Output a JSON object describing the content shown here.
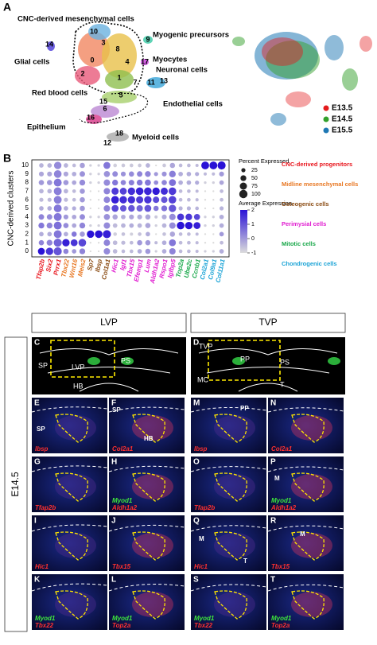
{
  "figure_a": {
    "letter": "A",
    "cell_types": [
      "CNC-derived mesenchymal cells",
      "Glial cells",
      "Myogenic precursors",
      "Myocytes",
      "Neuronal cells",
      "Red blood cells",
      "Endothelial cells",
      "Epithelium",
      "Myeloid cells"
    ],
    "clusters": [
      "0",
      "1",
      "2",
      "3",
      "4",
      "5",
      "6",
      "7",
      "8",
      "9",
      "10",
      "11",
      "12",
      "13",
      "14",
      "15",
      "16",
      "17",
      "18"
    ],
    "legend": [
      {
        "name": "E13.5",
        "color": "#e41a1c"
      },
      {
        "name": "E14.5",
        "color": "#33a02c"
      },
      {
        "name": "E15.5",
        "color": "#1f78b4"
      }
    ]
  },
  "dot_plot": {
    "type": "dot",
    "letter": "B",
    "y_label": "CNC-derived clusters",
    "clusters": [
      0,
      1,
      2,
      3,
      4,
      5,
      6,
      7,
      8,
      9,
      10
    ],
    "groups": [
      {
        "name": "CNC-derived progenitors",
        "color": "#e8141c",
        "genes": [
          "Tfap2b",
          "Six2",
          "Prrx1"
        ]
      },
      {
        "name": "Midline mesenchymal cells",
        "color": "#e87722",
        "genes": [
          "Tbx22",
          "Wnt16",
          "Meis2"
        ]
      },
      {
        "name": "Osteogenic cells",
        "color": "#8a4b12",
        "genes": [
          "Sp7",
          "Ibsp",
          "Col1a1"
        ]
      },
      {
        "name": "Perimysial cells",
        "color": "#e01bd0",
        "genes": [
          "Hic1",
          "Igf1",
          "Tbx15",
          "Efemp1",
          "Lum",
          "Aldh1a2",
          "Rspo1",
          "Igfbp5"
        ]
      },
      {
        "name": "Mitotic cells",
        "color": "#19a84a",
        "genes": [
          "Top2a",
          "Ube2c",
          "Ccnb1"
        ]
      },
      {
        "name": "Chondrogenic cells",
        "color": "#1aa3d6",
        "genes": [
          "Col2a1",
          "Col9a1",
          "Col11a1"
        ]
      }
    ],
    "percent": [
      [
        70,
        80,
        95,
        40,
        30,
        50,
        5,
        5,
        60,
        30,
        20,
        20,
        30,
        40,
        10,
        30,
        60,
        20,
        20,
        15,
        10,
        10,
        30
      ],
      [
        40,
        50,
        95,
        80,
        70,
        85,
        5,
        5,
        60,
        30,
        25,
        20,
        40,
        40,
        15,
        30,
        70,
        20,
        20,
        15,
        5,
        5,
        20
      ],
      [
        30,
        30,
        90,
        30,
        40,
        40,
        80,
        85,
        95,
        20,
        20,
        15,
        20,
        30,
        5,
        20,
        40,
        20,
        20,
        15,
        5,
        5,
        30
      ],
      [
        50,
        50,
        90,
        40,
        30,
        50,
        10,
        10,
        60,
        30,
        30,
        30,
        30,
        40,
        10,
        30,
        60,
        85,
        80,
        70,
        10,
        10,
        30
      ],
      [
        45,
        45,
        90,
        35,
        30,
        45,
        10,
        10,
        55,
        40,
        30,
        35,
        35,
        40,
        15,
        35,
        60,
        70,
        65,
        55,
        10,
        10,
        30
      ],
      [
        30,
        30,
        90,
        30,
        25,
        40,
        5,
        5,
        60,
        70,
        60,
        65,
        60,
        70,
        40,
        50,
        80,
        25,
        25,
        20,
        5,
        5,
        25
      ],
      [
        25,
        25,
        90,
        25,
        20,
        40,
        5,
        5,
        60,
        85,
        80,
        80,
        75,
        80,
        60,
        60,
        85,
        20,
        20,
        15,
        5,
        5,
        20
      ],
      [
        30,
        30,
        90,
        30,
        20,
        40,
        5,
        5,
        60,
        75,
        70,
        80,
        85,
        85,
        80,
        75,
        85,
        20,
        20,
        15,
        5,
        5,
        20
      ],
      [
        40,
        40,
        90,
        40,
        30,
        50,
        10,
        10,
        60,
        50,
        40,
        45,
        50,
        55,
        30,
        40,
        70,
        30,
        30,
        25,
        10,
        10,
        30
      ],
      [
        35,
        35,
        85,
        35,
        30,
        45,
        10,
        10,
        55,
        45,
        35,
        40,
        45,
        50,
        25,
        35,
        65,
        30,
        30,
        25,
        15,
        15,
        35
      ],
      [
        30,
        30,
        80,
        30,
        20,
        40,
        10,
        10,
        70,
        20,
        20,
        20,
        20,
        30,
        5,
        20,
        40,
        20,
        20,
        15,
        90,
        90,
        95
      ]
    ],
    "expression": [
      [
        2,
        1.5,
        1,
        0.3,
        0,
        0.3,
        -1,
        -1,
        0.2,
        -0.5,
        -0.5,
        -0.5,
        -0.3,
        0,
        -0.8,
        -0.3,
        0.3,
        -0.5,
        -0.5,
        -0.5,
        -0.8,
        -0.8,
        -0.3
      ],
      [
        0.3,
        0.3,
        0.8,
        1.8,
        1.5,
        1.2,
        -1,
        -1,
        0.3,
        -0.5,
        -0.5,
        -0.5,
        0,
        0,
        -0.5,
        -0.3,
        0.5,
        -0.5,
        -0.5,
        -0.5,
        -1,
        -1,
        -0.5
      ],
      [
        -0.3,
        -0.3,
        0.5,
        -0.3,
        0.5,
        0,
        2,
        2,
        1.8,
        -0.8,
        -0.6,
        -0.8,
        -0.6,
        -0.3,
        -1,
        -0.6,
        -0.2,
        -0.5,
        -0.5,
        -0.5,
        -1,
        -1,
        0
      ],
      [
        0.5,
        0.3,
        0.6,
        0.2,
        -0.2,
        0.3,
        -0.8,
        -0.8,
        0.2,
        -0.5,
        -0.4,
        -0.3,
        -0.4,
        -0.2,
        -0.8,
        -0.4,
        0.2,
        2,
        2,
        1.8,
        -0.8,
        -0.8,
        -0.3
      ],
      [
        0.3,
        0.2,
        0.5,
        0,
        -0.2,
        0.2,
        -0.8,
        -0.8,
        0.1,
        -0.2,
        -0.3,
        -0.2,
        -0.3,
        -0.2,
        -0.7,
        -0.3,
        0.2,
        1.5,
        1.5,
        1.2,
        -0.8,
        -0.8,
        -0.3
      ],
      [
        -0.3,
        -0.3,
        0.5,
        -0.3,
        -0.3,
        0,
        -1,
        -1,
        0.3,
        1.2,
        1,
        1,
        0.8,
        1,
        0.5,
        0.6,
        1,
        -0.4,
        -0.4,
        -0.4,
        -1,
        -1,
        -0.4
      ],
      [
        -0.5,
        -0.5,
        0.4,
        -0.5,
        -0.5,
        0,
        -1,
        -1,
        0.3,
        1.8,
        1.6,
        1.6,
        1.4,
        1.5,
        1.2,
        1,
        1.3,
        -0.5,
        -0.5,
        -0.5,
        -1,
        -1,
        -0.5
      ],
      [
        -0.4,
        -0.4,
        0.4,
        -0.4,
        -0.5,
        0,
        -1,
        -1,
        0.3,
        1.4,
        1.3,
        1.6,
        1.8,
        1.7,
        1.9,
        1.6,
        1.4,
        -0.5,
        -0.5,
        -0.5,
        -1,
        -1,
        -0.5
      ],
      [
        0,
        0,
        0.5,
        0,
        -0.2,
        0.2,
        -0.8,
        -0.8,
        0.2,
        0.5,
        0.3,
        0.4,
        0.5,
        0.5,
        0.2,
        0.3,
        0.6,
        -0.3,
        -0.3,
        -0.3,
        -0.8,
        -0.8,
        -0.2
      ],
      [
        -0.2,
        -0.2,
        0.3,
        -0.2,
        -0.3,
        0.1,
        -0.8,
        -0.8,
        0.1,
        0.2,
        0.1,
        0.2,
        0.3,
        0.3,
        0,
        0.1,
        0.4,
        -0.3,
        -0.3,
        -0.3,
        -0.5,
        -0.5,
        0
      ],
      [
        -0.4,
        -0.4,
        0.2,
        -0.4,
        -0.5,
        -0.1,
        -0.8,
        -0.8,
        0.5,
        -0.8,
        -0.7,
        -0.7,
        -0.7,
        -0.4,
        -1,
        -0.7,
        -0.2,
        -0.5,
        -0.5,
        -0.5,
        2.2,
        2.2,
        2.2
      ]
    ],
    "size_title": "Percent Expressed",
    "size_ticks": [
      25,
      50,
      75,
      100
    ],
    "color_title": "Average Expression",
    "color_ticks": [
      -1,
      0,
      1,
      2
    ],
    "color_low": "#dcdcdc",
    "color_high": "#2a12d6"
  },
  "micrographs": {
    "header_left": "LVP",
    "header_right": "TVP",
    "stage": "E14.5",
    "overview": [
      {
        "letter": "C",
        "labels": [
          "SP",
          "LVP",
          "PS",
          "HB"
        ]
      },
      {
        "letter": "D",
        "labels": [
          "TVP",
          "PP",
          "PS",
          "MC",
          "T"
        ]
      }
    ],
    "panels": [
      {
        "letter": "E",
        "labels": [
          "SP"
        ],
        "stains": [
          {
            "text": "Ibsp",
            "color": "#ff3030"
          }
        ]
      },
      {
        "letter": "F",
        "labels": [
          "SP",
          "HB"
        ],
        "stains": [
          {
            "text": "Col2a1",
            "color": "#ff3030"
          }
        ]
      },
      {
        "letter": "M",
        "labels": [
          "PP"
        ],
        "stains": [
          {
            "text": "Ibsp",
            "color": "#ff3030"
          }
        ]
      },
      {
        "letter": "N",
        "labels": [],
        "stains": [
          {
            "text": "Col2a1",
            "color": "#ff3030"
          }
        ]
      },
      {
        "letter": "G",
        "labels": [],
        "stains": [
          {
            "text": "Tfap2b",
            "color": "#ff3030"
          }
        ]
      },
      {
        "letter": "H",
        "labels": [],
        "stains": [
          {
            "text": "Myod1",
            "color": "#3ee63e"
          },
          {
            "text": "Aldh1a2",
            "color": "#ff3030"
          }
        ]
      },
      {
        "letter": "O",
        "labels": [],
        "stains": [
          {
            "text": "Tfap2b",
            "color": "#ff3030"
          }
        ]
      },
      {
        "letter": "P",
        "labels": [
          "M"
        ],
        "stains": [
          {
            "text": "Myod1",
            "color": "#3ee63e"
          },
          {
            "text": "Aldh1a2",
            "color": "#ff3030"
          }
        ]
      },
      {
        "letter": "I",
        "labels": [],
        "stains": [
          {
            "text": "Hic1",
            "color": "#ff3030"
          }
        ]
      },
      {
        "letter": "J",
        "labels": [],
        "stains": [
          {
            "text": "Tbx15",
            "color": "#ff3030"
          }
        ]
      },
      {
        "letter": "Q",
        "labels": [
          "M",
          "T"
        ],
        "stains": [
          {
            "text": "Hic1",
            "color": "#ff3030"
          }
        ]
      },
      {
        "letter": "R",
        "labels": [
          "M"
        ],
        "stains": [
          {
            "text": "Tbx15",
            "color": "#ff3030"
          }
        ]
      },
      {
        "letter": "K",
        "labels": [],
        "stains": [
          {
            "text": "Myod1",
            "color": "#3ee63e"
          },
          {
            "text": "Tbx22",
            "color": "#ff3030"
          }
        ]
      },
      {
        "letter": "L",
        "labels": [],
        "stains": [
          {
            "text": "Myod1",
            "color": "#3ee63e"
          },
          {
            "text": "Top2a",
            "color": "#ff3030"
          }
        ]
      },
      {
        "letter": "S",
        "labels": [],
        "stains": [
          {
            "text": "Myod1",
            "color": "#3ee63e"
          },
          {
            "text": "Tbx22",
            "color": "#ff3030"
          }
        ]
      },
      {
        "letter": "T",
        "labels": [],
        "stains": [
          {
            "text": "Myod1",
            "color": "#3ee63e"
          },
          {
            "text": "Top2a",
            "color": "#ff3030"
          }
        ]
      }
    ]
  }
}
